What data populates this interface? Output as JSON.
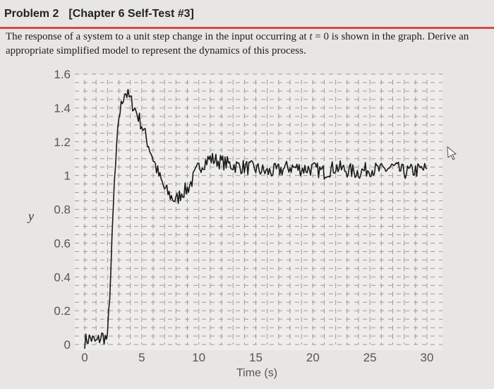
{
  "header": {
    "problem": "Problem 2",
    "chapter": "[Chapter 6 Self-Test #3]"
  },
  "statement": {
    "part1": "The response of a system to a unit step change in the input occurring at ",
    "var_t": "t",
    "part2": " = 0 is shown in the graph. Derive an appropriate simplified model to represent the dynamics of this process."
  },
  "colors": {
    "accent_rule": "#d24a4a",
    "trace": "#1a1a1a",
    "grid": "#9a9a9a"
  },
  "chart_data": {
    "type": "line",
    "title": "",
    "xlabel": "Time (s)",
    "ylabel": "y",
    "xlim": [
      0,
      30
    ],
    "ylim": [
      0,
      1.6
    ],
    "x_ticks": [
      0,
      5,
      10,
      15,
      20,
      25,
      30
    ],
    "y_ticks": [
      0,
      0.2,
      0.4,
      0.6,
      0.8,
      1,
      1.2,
      1.4,
      1.6
    ],
    "y_tick_labels": [
      "0",
      "0.2",
      "0.4",
      "0.6",
      "0.8",
      "1",
      "1.2",
      "1.4",
      "1.6"
    ],
    "grid": true,
    "series": [
      {
        "x": [
          0,
          0.5,
          1,
          1.5,
          2,
          2.3,
          2.6,
          3,
          3.5,
          4,
          4.5,
          5,
          5.5,
          6,
          6.5,
          7,
          7.5,
          8,
          8.5,
          9,
          9.5,
          10,
          10.5,
          11,
          12,
          13,
          14,
          15,
          16,
          17,
          18,
          19,
          20,
          21,
          22,
          23,
          24,
          25,
          26,
          27,
          28,
          29,
          30
        ],
        "y": [
          0.02,
          0.04,
          0.01,
          0.05,
          0.03,
          0.45,
          0.95,
          1.35,
          1.5,
          1.45,
          1.38,
          1.3,
          1.2,
          1.1,
          1.0,
          0.92,
          0.88,
          0.85,
          0.9,
          0.92,
          0.98,
          1.05,
          1.08,
          1.1,
          1.08,
          1.06,
          1.05,
          1.04,
          1.02,
          1.03,
          1.05,
          1.04,
          1.04,
          1.02,
          1.05,
          1.03,
          1.02,
          1.04,
          1.03,
          1.05,
          1.02,
          1.03,
          1.04
        ]
      }
    ]
  }
}
